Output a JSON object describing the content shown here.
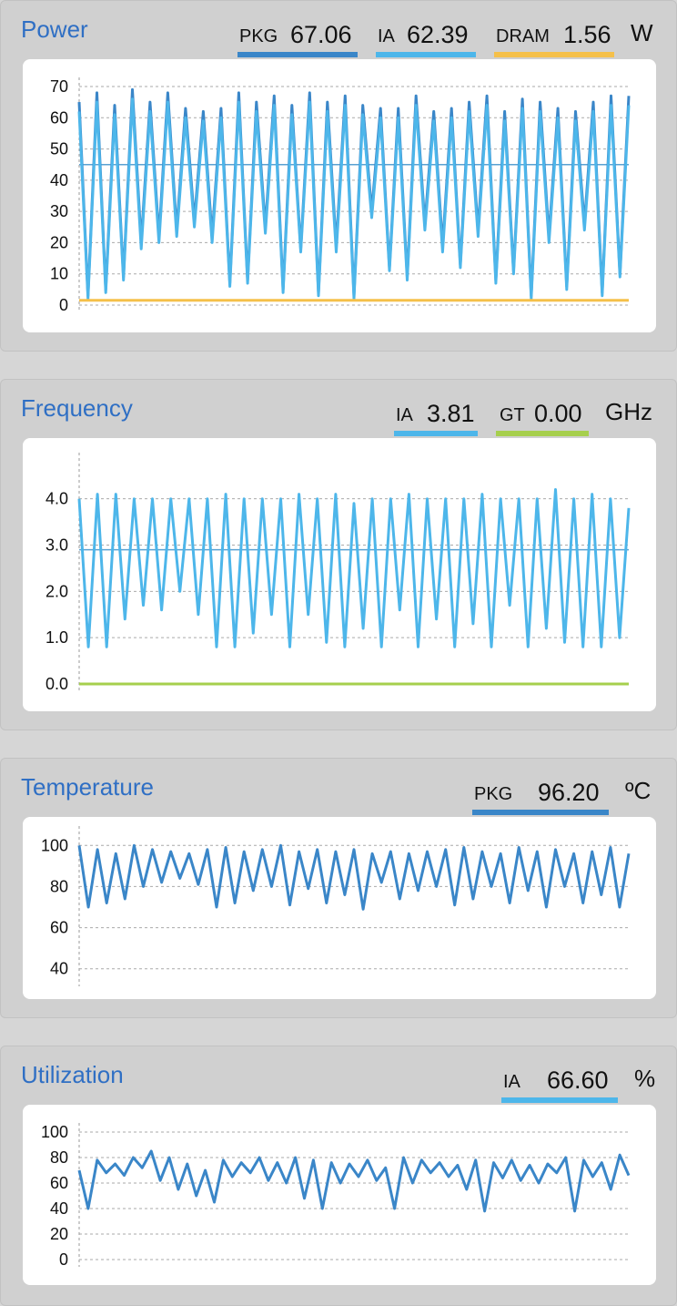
{
  "power": {
    "title": "Power",
    "unit": "W",
    "legend": [
      {
        "label": "PKG",
        "value": "67.06",
        "color": "#3a86c8"
      },
      {
        "label": "IA",
        "value": "62.39",
        "color": "#4db6ea"
      },
      {
        "label": "DRAM",
        "value": "1.56",
        "color": "#f5c04a"
      }
    ]
  },
  "frequency": {
    "title": "Frequency",
    "unit": "GHz",
    "legend": [
      {
        "label": "IA",
        "value": "3.81",
        "color": "#4db6ea"
      },
      {
        "label": "GT",
        "value": "0.00",
        "color": "#a6cf4d"
      }
    ]
  },
  "temperature": {
    "title": "Temperature",
    "unit": "ºC",
    "legend": [
      {
        "label": "PKG",
        "value": "96.20",
        "color": "#3a86c8"
      }
    ]
  },
  "utilization": {
    "title": "Utilization",
    "unit": "%",
    "legend": [
      {
        "label": "IA",
        "value": "66.60",
        "color": "#4db6ea"
      }
    ]
  },
  "chart_data": [
    {
      "type": "line",
      "id": "power",
      "ylim": [
        0,
        70
      ],
      "yticks": [
        "0",
        "10",
        "20",
        "30",
        "40",
        "50",
        "60",
        "70"
      ],
      "avg_line": 45,
      "series": [
        {
          "name": "PKG",
          "color": "#3a86c8",
          "pattern": [
            65,
            3,
            68,
            5,
            64,
            9,
            69,
            20,
            65,
            22,
            68,
            24,
            63,
            27,
            62,
            22,
            63,
            7,
            68,
            8,
            65,
            25,
            67,
            5,
            64,
            18,
            68,
            4,
            65,
            19,
            67,
            3,
            64,
            30,
            63,
            12,
            63,
            9,
            67,
            26,
            62,
            19,
            63,
            13,
            65,
            24,
            67,
            8,
            62,
            11,
            66,
            3,
            65,
            22,
            63,
            6,
            62,
            26,
            65,
            4,
            67,
            10,
            67
          ]
        },
        {
          "name": "IA",
          "color": "#4db6ea",
          "pattern": [
            62,
            2,
            65,
            4,
            61,
            8,
            66,
            18,
            62,
            20,
            65,
            22,
            60,
            25,
            59,
            20,
            60,
            6,
            65,
            7,
            62,
            23,
            64,
            4,
            61,
            17,
            65,
            3,
            62,
            17,
            64,
            2,
            61,
            28,
            60,
            11,
            60,
            8,
            64,
            24,
            59,
            17,
            60,
            12,
            62,
            22,
            64,
            7,
            59,
            10,
            63,
            2,
            62,
            20,
            60,
            5,
            59,
            24,
            62,
            3,
            64,
            9,
            64
          ]
        },
        {
          "name": "DRAM",
          "color": "#f5c04a",
          "constant": 1.56
        }
      ]
    },
    {
      "type": "line",
      "id": "frequency",
      "ylim": [
        0,
        4.8
      ],
      "yticks": [
        "0.0",
        "1.0",
        "2.0",
        "3.0",
        "4.0"
      ],
      "avg_line": 2.9,
      "series": [
        {
          "name": "IA",
          "color": "#4db6ea",
          "pattern": [
            4.0,
            0.8,
            4.1,
            0.8,
            4.1,
            1.4,
            4.0,
            1.7,
            4.0,
            1.6,
            4.0,
            2.0,
            4.0,
            1.5,
            4.0,
            0.8,
            4.1,
            0.8,
            4.0,
            1.1,
            4.0,
            1.5,
            4.0,
            0.8,
            4.1,
            1.5,
            4.0,
            0.9,
            4.1,
            0.8,
            3.9,
            1.2,
            4.0,
            0.8,
            4.0,
            1.6,
            4.1,
            0.8,
            4.0,
            1.4,
            4.0,
            0.8,
            4.0,
            1.3,
            4.1,
            0.8,
            4.0,
            1.7,
            4.0,
            0.8,
            4.0,
            1.2,
            4.2,
            0.9,
            4.0,
            0.8,
            4.1,
            0.8,
            4.0,
            1.0,
            3.8
          ]
        },
        {
          "name": "GT",
          "color": "#a6cf4d",
          "constant": 0.0
        }
      ]
    },
    {
      "type": "line",
      "id": "temperature",
      "ylim": [
        35,
        105
      ],
      "yticks": [
        "40",
        "60",
        "80",
        "100"
      ],
      "series": [
        {
          "name": "PKG",
          "color": "#3a86c8",
          "pattern": [
            100,
            70,
            98,
            72,
            96,
            74,
            100,
            80,
            98,
            82,
            97,
            84,
            96,
            81,
            98,
            70,
            99,
            72,
            97,
            78,
            98,
            80,
            100,
            71,
            97,
            79,
            98,
            72,
            97,
            76,
            98,
            69,
            96,
            82,
            97,
            74,
            96,
            78,
            97,
            80,
            98,
            71,
            99,
            74,
            97,
            80,
            96,
            72,
            99,
            78,
            97,
            70,
            98,
            80,
            96,
            72,
            97,
            76,
            99,
            70,
            96
          ]
        }
      ]
    },
    {
      "type": "line",
      "id": "utilization",
      "ylim": [
        0,
        100
      ],
      "yticks": [
        "0",
        "20",
        "40",
        "60",
        "80",
        "100"
      ],
      "series": [
        {
          "name": "IA",
          "color": "#3a86c8",
          "pattern": [
            70,
            40,
            78,
            68,
            75,
            66,
            80,
            72,
            85,
            62,
            80,
            55,
            75,
            50,
            70,
            45,
            78,
            65,
            76,
            68,
            80,
            62,
            76,
            60,
            80,
            48,
            78,
            40,
            76,
            60,
            75,
            65,
            78,
            62,
            72,
            40,
            80,
            60,
            78,
            68,
            76,
            65,
            74,
            55,
            78,
            38,
            76,
            64,
            78,
            62,
            74,
            60,
            75,
            68,
            80,
            38,
            78,
            65,
            76,
            55,
            82,
            66
          ]
        }
      ]
    }
  ]
}
